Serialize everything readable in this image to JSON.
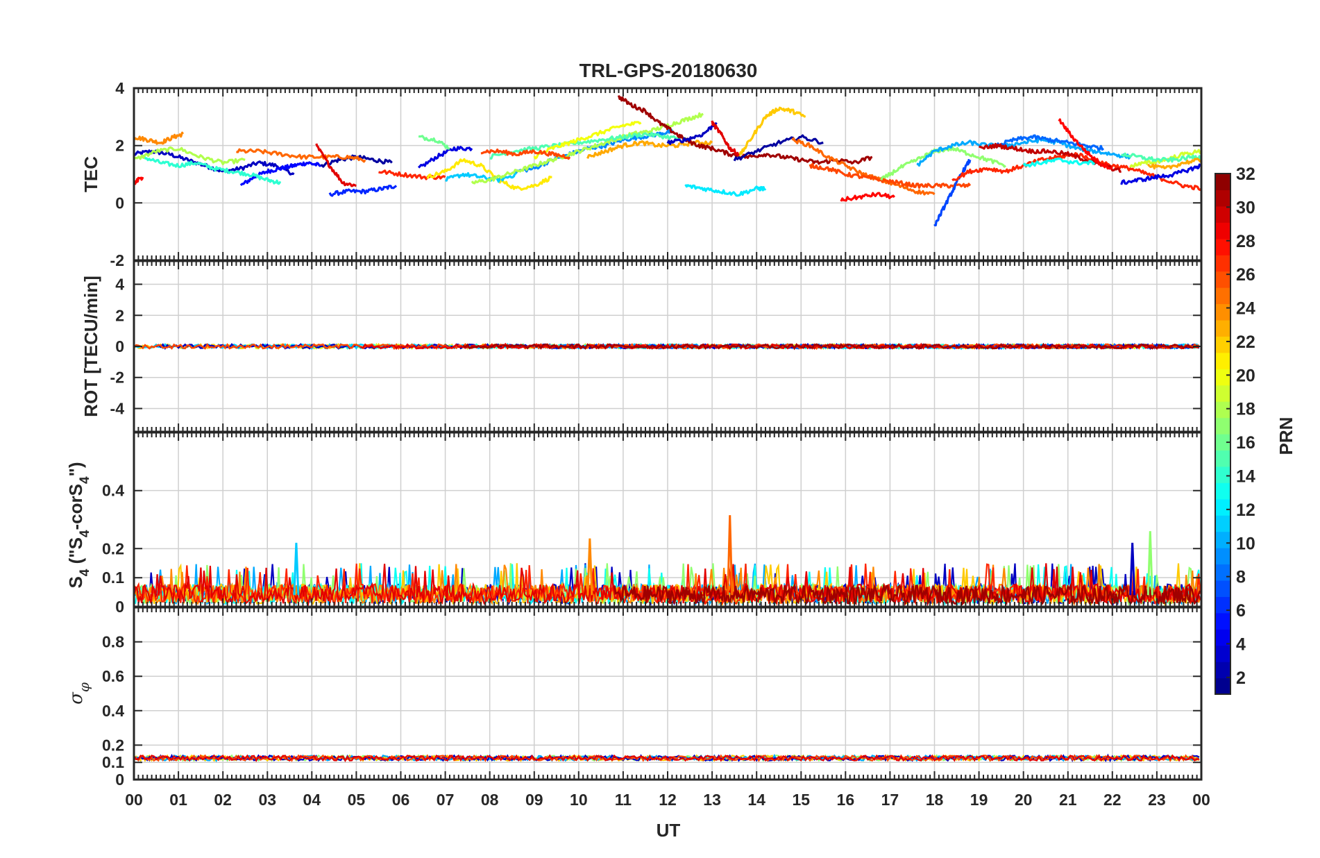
{
  "chart_data": {
    "type": "line",
    "title": "TRL-GPS-20180630",
    "xlabel": "UT",
    "xlim": [
      0,
      24
    ],
    "x_tick_values": [
      0,
      1,
      2,
      3,
      4,
      5,
      6,
      7,
      8,
      9,
      10,
      11,
      12,
      13,
      14,
      15,
      16,
      17,
      18,
      19,
      20,
      21,
      22,
      23,
      24
    ],
    "x_tick_labels": [
      "00",
      "01",
      "02",
      "03",
      "04",
      "05",
      "06",
      "07",
      "08",
      "09",
      "10",
      "11",
      "12",
      "13",
      "14",
      "15",
      "16",
      "17",
      "18",
      "19",
      "20",
      "21",
      "22",
      "23",
      "00"
    ],
    "grid": true,
    "panels": [
      {
        "id": "tec",
        "ylabel": "TEC",
        "ylim": [
          -2,
          4
        ],
        "y_ticks": [
          -2,
          0,
          2,
          4
        ],
        "y_tick_labels": [
          "-2",
          "0",
          "2",
          "4"
        ],
        "series": [
          {
            "prn": 3,
            "x": [
              0.0,
              0.4,
              0.8,
              1.2,
              1.6,
              2.0,
              2.4,
              2.8,
              3.2,
              3.6
            ],
            "y": [
              1.7,
              1.8,
              1.7,
              1.5,
              1.3,
              1.1,
              1.2,
              1.4,
              1.3,
              1.0
            ]
          },
          {
            "prn": 5,
            "x": [
              2.4,
              2.7,
              3.0,
              3.3,
              3.6,
              3.9,
              4.2
            ],
            "y": [
              0.6,
              0.9,
              1.1,
              1.2,
              1.3,
              1.4,
              1.3
            ]
          },
          {
            "prn": 6,
            "x": [
              4.4,
              4.8,
              5.2,
              5.6,
              5.9
            ],
            "y": [
              0.3,
              0.4,
              0.4,
              0.5,
              0.6
            ]
          },
          {
            "prn": 2,
            "x": [
              4.2,
              4.6,
              5.0,
              5.4,
              5.8
            ],
            "y": [
              1.3,
              1.5,
              1.6,
              1.5,
              1.4
            ]
          },
          {
            "prn": 4,
            "x": [
              6.4,
              6.8,
              7.2,
              7.6
            ],
            "y": [
              1.2,
              1.6,
              1.9,
              1.9
            ]
          },
          {
            "prn": 24,
            "x": [
              0.0,
              0.3,
              0.6,
              0.9,
              1.1
            ],
            "y": [
              2.3,
              2.2,
              2.1,
              2.3,
              2.4
            ]
          },
          {
            "prn": 14,
            "x": [
              0.2,
              0.6,
              1.0,
              1.4,
              1.8,
              2.2,
              2.6,
              3.0,
              3.3
            ],
            "y": [
              1.6,
              1.4,
              1.3,
              1.4,
              1.2,
              1.1,
              1.0,
              0.8,
              0.7
            ]
          },
          {
            "prn": 18,
            "x": [
              0.0,
              0.5,
              1.0,
              1.5,
              2.0,
              2.5
            ],
            "y": [
              1.5,
              1.8,
              1.9,
              1.6,
              1.4,
              1.5
            ]
          },
          {
            "prn": 25,
            "x": [
              2.3,
              2.8,
              3.3,
              3.8,
              4.3,
              4.8,
              5.2
            ],
            "y": [
              1.8,
              1.8,
              1.7,
              1.6,
              1.6,
              1.6,
              1.5
            ]
          },
          {
            "prn": 29,
            "x": [
              4.1,
              4.4,
              4.7,
              5.0
            ],
            "y": [
              2.0,
              1.3,
              0.7,
              0.6
            ]
          },
          {
            "prn": 27,
            "x": [
              5.5,
              6.0,
              6.5,
              7.0
            ],
            "y": [
              1.1,
              1.0,
              0.9,
              0.9
            ]
          },
          {
            "prn": 16,
            "x": [
              6.4,
              6.8,
              7.1
            ],
            "y": [
              2.3,
              2.2,
              1.9
            ]
          },
          {
            "prn": 21,
            "x": [
              6.6,
              7.0,
              7.4,
              7.8,
              8.2,
              8.6,
              9.0,
              9.4
            ],
            "y": [
              0.9,
              1.1,
              1.5,
              1.3,
              0.8,
              0.5,
              0.6,
              0.9
            ]
          },
          {
            "prn": 11,
            "x": [
              7.0,
              7.4,
              7.8,
              8.2,
              8.6
            ],
            "y": [
              0.8,
              1.0,
              0.9,
              0.8,
              1.0
            ]
          },
          {
            "prn": 9,
            "x": [
              8.6,
              9.0,
              9.4,
              9.8,
              10.2,
              10.6,
              11.0,
              11.4,
              11.8,
              12.1
            ],
            "y": [
              1.1,
              1.2,
              1.5,
              1.7,
              1.9,
              2.0,
              2.2,
              2.3,
              2.4,
              2.5
            ]
          },
          {
            "prn": 18,
            "x": [
              7.6,
              8.0,
              8.4,
              8.8,
              9.2,
              9.6,
              10.0,
              10.4,
              10.8,
              11.2,
              11.6,
              12.0,
              12.4,
              12.8
            ],
            "y": [
              0.7,
              0.8,
              1.0,
              1.2,
              1.4,
              1.6,
              1.8,
              2.0,
              2.2,
              2.4,
              2.5,
              2.7,
              2.9,
              3.1
            ]
          },
          {
            "prn": 15,
            "x": [
              8.0,
              8.5,
              9.0,
              9.5,
              10.0,
              10.5,
              11.0,
              11.5,
              12.0,
              12.5
            ],
            "y": [
              1.6,
              1.8,
              1.9,
              2.0,
              2.1,
              2.2,
              2.3,
              2.4,
              2.3,
              2.2
            ]
          },
          {
            "prn": 20,
            "x": [
              9.0,
              9.4,
              9.8,
              10.2,
              10.6,
              11.0,
              11.4
            ],
            "y": [
              1.6,
              1.9,
              2.1,
              2.3,
              2.5,
              2.7,
              2.8
            ]
          },
          {
            "prn": 26,
            "x": [
              7.8,
              8.2,
              8.6,
              9.0,
              9.4,
              9.8
            ],
            "y": [
              1.8,
              1.8,
              1.7,
              1.8,
              1.7,
              1.6
            ]
          },
          {
            "prn": 23,
            "x": [
              10.2,
              10.6,
              11.0,
              11.4,
              11.8,
              12.2,
              12.6,
              13.0
            ],
            "y": [
              1.6,
              1.8,
              2.0,
              2.1,
              2.0,
              2.0,
              2.1,
              2.1
            ]
          },
          {
            "prn": 31,
            "x": [
              10.9,
              11.2,
              11.5,
              11.8,
              12.1,
              12.4,
              12.7,
              13.0,
              13.4,
              13.8,
              14.2,
              14.6,
              15.0,
              15.4,
              15.8,
              16.2,
              16.6
            ],
            "y": [
              3.7,
              3.4,
              3.2,
              2.8,
              2.5,
              2.2,
              2.0,
              1.9,
              1.7,
              1.6,
              1.7,
              1.6,
              1.5,
              1.4,
              1.5,
              1.4,
              1.6
            ]
          },
          {
            "prn": 3,
            "x": [
              12.0,
              12.4,
              12.8,
              13.1
            ],
            "y": [
              2.1,
              2.2,
              2.4,
              2.8
            ]
          },
          {
            "prn": 22,
            "x": [
              13.6,
              13.9,
              14.2,
              14.5,
              14.8,
              15.1
            ],
            "y": [
              1.6,
              2.3,
              3.0,
              3.3,
              3.2,
              3.0
            ]
          },
          {
            "prn": 12,
            "x": [
              12.4,
              12.8,
              13.2,
              13.6,
              14.0,
              14.2
            ],
            "y": [
              0.6,
              0.5,
              0.4,
              0.3,
              0.5,
              0.5
            ]
          },
          {
            "prn": 29,
            "x": [
              13.0,
              13.2,
              13.4,
              13.6
            ],
            "y": [
              2.8,
              2.4,
              1.9,
              1.7
            ]
          },
          {
            "prn": 2,
            "x": [
              13.5,
              14.0,
              14.5,
              15.0,
              15.5
            ],
            "y": [
              1.5,
              1.8,
              2.1,
              2.3,
              2.1
            ]
          },
          {
            "prn": 25,
            "x": [
              14.8,
              15.2,
              15.6,
              16.0,
              16.4,
              16.8,
              17.2,
              17.6,
              18.0
            ],
            "y": [
              2.2,
              2.0,
              1.6,
              1.3,
              1.0,
              0.8,
              0.6,
              0.4,
              0.3
            ]
          },
          {
            "prn": 26,
            "x": [
              15.2,
              15.6,
              16.0,
              16.4,
              16.8,
              17.2,
              17.6,
              18.0,
              18.4,
              18.8
            ],
            "y": [
              1.3,
              1.2,
              1.0,
              0.9,
              0.8,
              0.7,
              0.6,
              0.6,
              0.6,
              0.6
            ]
          },
          {
            "prn": 28,
            "x": [
              15.9,
              16.3,
              16.7,
              17.1
            ],
            "y": [
              0.1,
              0.2,
              0.3,
              0.2
            ]
          },
          {
            "prn": 17,
            "x": [
              16.8,
              17.2,
              17.6,
              18.0,
              18.4,
              18.8,
              19.2,
              19.6
            ],
            "y": [
              0.8,
              1.2,
              1.5,
              1.8,
              1.9,
              1.7,
              1.5,
              1.3
            ]
          },
          {
            "prn": 10,
            "x": [
              17.6,
              18.0,
              18.4,
              18.8,
              19.2,
              19.6,
              20.0,
              20.4,
              20.8,
              21.2,
              21.6,
              22.0,
              22.4
            ],
            "y": [
              1.3,
              1.8,
              2.0,
              2.1,
              2.0,
              2.0,
              2.1,
              2.2,
              2.1,
              1.9,
              1.8,
              1.7,
              1.6
            ]
          },
          {
            "prn": 7,
            "x": [
              18.0,
              18.2,
              18.4,
              18.6,
              18.8
            ],
            "y": [
              -0.8,
              -0.2,
              0.4,
              1.0,
              1.5
            ]
          },
          {
            "prn": 8,
            "x": [
              19.4,
              19.8,
              20.2,
              20.6,
              21.0,
              21.4,
              21.8
            ],
            "y": [
              2.0,
              2.2,
              2.3,
              2.2,
              2.1,
              2.0,
              1.9
            ]
          },
          {
            "prn": 27,
            "x": [
              18.4,
              18.8,
              19.2,
              19.6,
              20.0,
              20.4,
              20.8,
              21.2,
              21.6,
              22.0,
              22.4,
              22.8,
              23.2,
              23.6,
              24.0
            ],
            "y": [
              0.8,
              1.1,
              1.2,
              1.1,
              1.3,
              1.5,
              1.6,
              1.7,
              1.5,
              1.3,
              1.2,
              1.0,
              0.8,
              0.6,
              0.5
            ]
          },
          {
            "prn": 30,
            "x": [
              19.0,
              19.4,
              19.8,
              20.2,
              20.6,
              21.0,
              21.4,
              21.8,
              22.2
            ],
            "y": [
              1.9,
              2.0,
              1.9,
              1.8,
              1.8,
              1.7,
              1.5,
              1.3,
              1.1
            ]
          },
          {
            "prn": 28,
            "x": [
              20.8,
              21.1,
              21.4,
              21.7,
              22.0
            ],
            "y": [
              2.9,
              2.3,
              1.8,
              1.4,
              1.2
            ]
          },
          {
            "prn": 13,
            "x": [
              20.0,
              20.4,
              20.8,
              21.2,
              21.6
            ],
            "y": [
              1.3,
              1.4,
              1.5,
              1.4,
              1.4
            ]
          },
          {
            "prn": 4,
            "x": [
              22.2,
              22.6,
              23.0,
              23.4,
              23.8,
              24.0
            ],
            "y": [
              0.7,
              0.8,
              0.9,
              1.0,
              1.2,
              1.3
            ]
          },
          {
            "prn": 19,
            "x": [
              22.4,
              22.8,
              23.2,
              23.6,
              24.0
            ],
            "y": [
              1.3,
              1.4,
              1.5,
              1.7,
              1.8
            ]
          },
          {
            "prn": 15,
            "x": [
              22.2,
              22.6,
              23.0,
              23.4,
              23.8,
              24.0
            ],
            "y": [
              1.7,
              1.6,
              1.5,
              1.5,
              1.6,
              1.6
            ]
          },
          {
            "prn": 23,
            "x": [
              22.8,
              23.2,
              23.6,
              24.0
            ],
            "y": [
              1.3,
              1.2,
              1.4,
              1.5
            ]
          },
          {
            "prn": 28,
            "x": [
              0.0,
              0.2
            ],
            "y": [
              0.7,
              0.9
            ]
          }
        ]
      },
      {
        "id": "rot",
        "ylabel": "ROT [TECU/min]",
        "ylim": [
          -5.5,
          5.5
        ],
        "y_ticks": [
          -4,
          -2,
          0,
          2,
          4
        ],
        "y_tick_labels": [
          "-4",
          "-2",
          "0",
          "2",
          "4"
        ],
        "description_value": "ROT stays within ±0.15 TECU/min for all PRNs",
        "band": {
          "min": -0.15,
          "max": 0.15
        }
      },
      {
        "id": "s4",
        "ylabel": "S4 (\"S4-corS4\")",
        "ylim": [
          0,
          0.6
        ],
        "y_ticks": [
          0,
          0.1,
          0.2,
          0.4
        ],
        "y_tick_labels": [
          "0",
          "0.1",
          "0.2",
          "0.4"
        ],
        "baseline_range": [
          0.01,
          0.1
        ],
        "spikes": [
          {
            "x": 3.65,
            "y": 0.22,
            "prn": 11
          },
          {
            "x": 10.25,
            "y": 0.235,
            "prn": 24
          },
          {
            "x": 13.4,
            "y": 0.315,
            "prn": 25
          },
          {
            "x": 22.45,
            "y": 0.22,
            "prn": 3
          },
          {
            "x": 22.85,
            "y": 0.26,
            "prn": 17
          }
        ]
      },
      {
        "id": "sigma",
        "ylabel": "σφ",
        "ylim": [
          0,
          1
        ],
        "y_ticks": [
          0,
          0.1,
          0.2,
          0.4,
          0.6,
          0.8
        ],
        "y_tick_labels": [
          "0",
          "0.1",
          "0.2",
          "0.4",
          "0.6",
          "0.8"
        ],
        "baseline_range": [
          0.11,
          0.14
        ]
      }
    ],
    "colorbar": {
      "label": "PRN",
      "range": [
        1,
        32
      ],
      "ticks": [
        2,
        4,
        6,
        8,
        10,
        12,
        14,
        16,
        18,
        20,
        22,
        24,
        26,
        28,
        30,
        32
      ],
      "tick_labels": [
        "2",
        "4",
        "6",
        "8",
        "10",
        "12",
        "14",
        "16",
        "18",
        "20",
        "22",
        "24",
        "26",
        "28",
        "30",
        "32"
      ],
      "colormap": "jet",
      "levels": 32
    }
  }
}
